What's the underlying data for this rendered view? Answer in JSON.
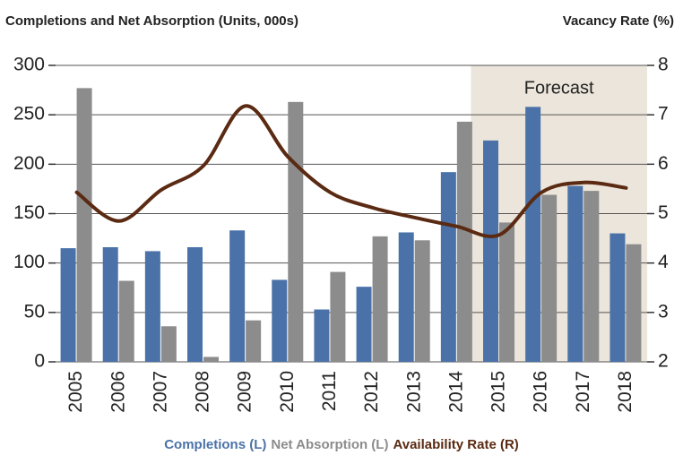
{
  "chart_data": {
    "type": "bar_line",
    "y_title": "Completions and Net Absorption (Units, 000s)",
    "y2_title": "Vacancy Rate (%)",
    "categories": [
      "2005",
      "2006",
      "2007",
      "2008",
      "2009",
      "2010",
      "2011",
      "2012",
      "2013",
      "2014",
      "2015",
      "2016",
      "2017",
      "2018"
    ],
    "series": [
      {
        "name": "Completions (L)",
        "color": "#4a72a8",
        "type": "bar",
        "values": [
          115,
          116,
          112,
          116,
          133,
          83,
          53,
          76,
          131,
          192,
          224,
          258,
          178,
          130
        ]
      },
      {
        "name": "Net Absorption (L)",
        "color": "#8c8c8c",
        "type": "bar",
        "values": [
          277,
          82,
          36,
          5,
          42,
          263,
          91,
          127,
          123,
          243,
          141,
          169,
          173,
          119
        ]
      },
      {
        "name": "Availability Rate (R)",
        "color": "#5a2a12",
        "type": "line",
        "axis": "y2",
        "values": [
          5.43,
          4.85,
          5.48,
          5.97,
          7.18,
          6.15,
          5.43,
          5.12,
          4.92,
          4.74,
          4.57,
          5.43,
          5.63,
          5.52
        ]
      }
    ],
    "ylim": [
      0,
      300
    ],
    "yticks": [
      0,
      50,
      100,
      150,
      200,
      250,
      300
    ],
    "y2lim": [
      2,
      8
    ],
    "y2ticks": [
      2,
      3,
      4,
      5,
      6,
      7,
      8
    ],
    "grid": true,
    "forecast": {
      "label": "Forecast",
      "from": "2015",
      "color": "#ebe5db"
    }
  }
}
